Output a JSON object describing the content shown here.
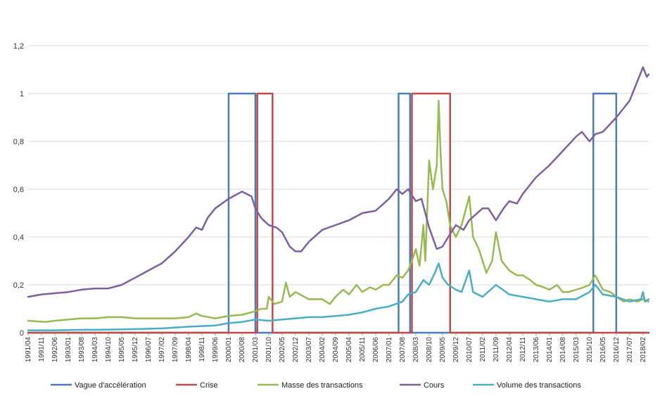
{
  "chart_data": {
    "type": "line",
    "title": "",
    "xlabel": "",
    "ylabel": "",
    "ylim": [
      0,
      1.2
    ],
    "xlim": [
      "1991/04",
      "2018/05"
    ],
    "y_ticks": [
      "0",
      "0,2",
      "0,4",
      "0,6",
      "0,8",
      "1",
      "1,2"
    ],
    "y_tick_values": [
      0,
      0.2,
      0.4,
      0.6,
      0.8,
      1.0,
      1.2
    ],
    "x_ticks": [
      "1991/04",
      "1991/11",
      "1992/06",
      "1993/01",
      "1993/08",
      "1994/03",
      "1994/10",
      "1995/05",
      "1995/12",
      "1996/07",
      "1997/02",
      "1997/09",
      "1998/04",
      "1998/11",
      "1999/06",
      "2000/01",
      "2000/08",
      "2001/03",
      "2001/10",
      "2002/05",
      "2002/12",
      "2003/07",
      "2004/02",
      "2004/09",
      "2005/04",
      "2005/11",
      "2006/06",
      "2007/01",
      "2007/08",
      "2008/03",
      "2008/10",
      "2009/05",
      "2009/12",
      "2010/07",
      "2011/02",
      "2011/09",
      "2012/04",
      "2012/11",
      "2013/06",
      "2014/01",
      "2014/08",
      "2015/03",
      "2015/10",
      "2016/05",
      "2016/12",
      "2017/07",
      "2018/02"
    ],
    "grid": true,
    "legend_position": "bottom",
    "series": [
      {
        "name": "Vague d'accélération",
        "color": "#4a7ebb",
        "kind": "step",
        "points": [
          [
            "1991/04",
            0
          ],
          [
            "2000/01",
            0
          ],
          [
            "2000/01",
            1
          ],
          [
            "2001/03",
            1
          ],
          [
            "2001/03",
            0
          ],
          [
            "2007/06",
            0
          ],
          [
            "2007/06",
            1
          ],
          [
            "2007/12",
            1
          ],
          [
            "2007/12",
            0
          ],
          [
            "2015/12",
            0
          ],
          [
            "2015/12",
            1
          ],
          [
            "2016/12",
            1
          ],
          [
            "2016/12",
            0
          ],
          [
            "2018/05",
            0
          ]
        ]
      },
      {
        "name": "Crise",
        "color": "#be4b48",
        "kind": "step",
        "points": [
          [
            "1991/04",
            0
          ],
          [
            "2001/04",
            0
          ],
          [
            "2001/04",
            1
          ],
          [
            "2001/12",
            1
          ],
          [
            "2001/12",
            0
          ],
          [
            "2008/01",
            0
          ],
          [
            "2008/01",
            1
          ],
          [
            "2009/09",
            1
          ],
          [
            "2009/09",
            0
          ],
          [
            "2018/05",
            0
          ]
        ]
      },
      {
        "name": "Masse des transactions",
        "color": "#98b954",
        "kind": "line",
        "points": [
          [
            "1991/04",
            0.05
          ],
          [
            "1992/01",
            0.045
          ],
          [
            "1992/06",
            0.05
          ],
          [
            "1993/01",
            0.055
          ],
          [
            "1993/08",
            0.06
          ],
          [
            "1994/03",
            0.06
          ],
          [
            "1994/10",
            0.065
          ],
          [
            "1995/05",
            0.065
          ],
          [
            "1995/12",
            0.06
          ],
          [
            "1996/07",
            0.06
          ],
          [
            "1997/02",
            0.06
          ],
          [
            "1997/09",
            0.06
          ],
          [
            "1998/04",
            0.065
          ],
          [
            "1998/08",
            0.08
          ],
          [
            "1998/11",
            0.07
          ],
          [
            "1999/06",
            0.06
          ],
          [
            "2000/01",
            0.07
          ],
          [
            "2000/08",
            0.075
          ],
          [
            "2001/03",
            0.09
          ],
          [
            "2001/06",
            0.1
          ],
          [
            "2001/09",
            0.1
          ],
          [
            "2001/10",
            0.15
          ],
          [
            "2002/01",
            0.12
          ],
          [
            "2002/05",
            0.13
          ],
          [
            "2002/07",
            0.21
          ],
          [
            "2002/09",
            0.15
          ],
          [
            "2002/12",
            0.17
          ],
          [
            "2003/07",
            0.14
          ],
          [
            "2004/02",
            0.14
          ],
          [
            "2004/06",
            0.12
          ],
          [
            "2004/09",
            0.15
          ],
          [
            "2005/01",
            0.18
          ],
          [
            "2005/04",
            0.16
          ],
          [
            "2005/08",
            0.2
          ],
          [
            "2005/11",
            0.17
          ],
          [
            "2006/03",
            0.19
          ],
          [
            "2006/06",
            0.18
          ],
          [
            "2006/10",
            0.2
          ],
          [
            "2007/01",
            0.2
          ],
          [
            "2007/05",
            0.24
          ],
          [
            "2007/08",
            0.23
          ],
          [
            "2007/11",
            0.26
          ],
          [
            "2008/01",
            0.3
          ],
          [
            "2008/03",
            0.35
          ],
          [
            "2008/05",
            0.28
          ],
          [
            "2008/07",
            0.45
          ],
          [
            "2008/08",
            0.3
          ],
          [
            "2008/10",
            0.72
          ],
          [
            "2008/12",
            0.6
          ],
          [
            "2009/02",
            0.7
          ],
          [
            "2009/03",
            0.97
          ],
          [
            "2009/04",
            0.75
          ],
          [
            "2009/05",
            0.6
          ],
          [
            "2009/07",
            0.55
          ],
          [
            "2009/09",
            0.45
          ],
          [
            "2009/12",
            0.4
          ],
          [
            "2010/03",
            0.45
          ],
          [
            "2010/07",
            0.57
          ],
          [
            "2010/09",
            0.4
          ],
          [
            "2010/12",
            0.35
          ],
          [
            "2011/02",
            0.3
          ],
          [
            "2011/04",
            0.25
          ],
          [
            "2011/07",
            0.3
          ],
          [
            "2011/09",
            0.42
          ],
          [
            "2011/12",
            0.3
          ],
          [
            "2012/04",
            0.26
          ],
          [
            "2012/08",
            0.24
          ],
          [
            "2012/11",
            0.24
          ],
          [
            "2013/03",
            0.22
          ],
          [
            "2013/06",
            0.2
          ],
          [
            "2013/10",
            0.19
          ],
          [
            "2014/01",
            0.18
          ],
          [
            "2014/05",
            0.2
          ],
          [
            "2014/08",
            0.17
          ],
          [
            "2014/11",
            0.17
          ],
          [
            "2015/03",
            0.18
          ],
          [
            "2015/07",
            0.19
          ],
          [
            "2015/10",
            0.2
          ],
          [
            "2016/01",
            0.24
          ],
          [
            "2016/05",
            0.18
          ],
          [
            "2016/09",
            0.17
          ],
          [
            "2016/12",
            0.15
          ],
          [
            "2017/04",
            0.13
          ],
          [
            "2017/07",
            0.14
          ],
          [
            "2017/11",
            0.13
          ],
          [
            "2018/02",
            0.14
          ],
          [
            "2018/05",
            0.13
          ]
        ]
      },
      {
        "name": "Cours",
        "color": "#7d60a0",
        "kind": "line",
        "points": [
          [
            "1991/04",
            0.15
          ],
          [
            "1991/11",
            0.16
          ],
          [
            "1992/06",
            0.165
          ],
          [
            "1993/01",
            0.17
          ],
          [
            "1993/08",
            0.18
          ],
          [
            "1994/03",
            0.185
          ],
          [
            "1994/10",
            0.185
          ],
          [
            "1995/05",
            0.2
          ],
          [
            "1995/12",
            0.23
          ],
          [
            "1996/07",
            0.26
          ],
          [
            "1997/02",
            0.29
          ],
          [
            "1997/09",
            0.34
          ],
          [
            "1998/04",
            0.4
          ],
          [
            "1998/08",
            0.44
          ],
          [
            "1998/11",
            0.43
          ],
          [
            "1999/02",
            0.48
          ],
          [
            "1999/06",
            0.52
          ],
          [
            "2000/01",
            0.56
          ],
          [
            "2000/08",
            0.59
          ],
          [
            "2001/01",
            0.57
          ],
          [
            "2001/03",
            0.52
          ],
          [
            "2001/06",
            0.48
          ],
          [
            "2001/10",
            0.45
          ],
          [
            "2002/02",
            0.44
          ],
          [
            "2002/05",
            0.42
          ],
          [
            "2002/09",
            0.36
          ],
          [
            "2002/12",
            0.34
          ],
          [
            "2003/03",
            0.34
          ],
          [
            "2003/07",
            0.38
          ],
          [
            "2004/02",
            0.43
          ],
          [
            "2004/09",
            0.45
          ],
          [
            "2005/04",
            0.47
          ],
          [
            "2005/11",
            0.5
          ],
          [
            "2006/06",
            0.51
          ],
          [
            "2007/01",
            0.56
          ],
          [
            "2007/05",
            0.6
          ],
          [
            "2007/08",
            0.58
          ],
          [
            "2007/11",
            0.6
          ],
          [
            "2008/03",
            0.55
          ],
          [
            "2008/06",
            0.56
          ],
          [
            "2008/10",
            0.44
          ],
          [
            "2009/02",
            0.35
          ],
          [
            "2009/05",
            0.36
          ],
          [
            "2009/08",
            0.4
          ],
          [
            "2009/12",
            0.45
          ],
          [
            "2010/04",
            0.43
          ],
          [
            "2010/07",
            0.47
          ],
          [
            "2011/02",
            0.52
          ],
          [
            "2011/05",
            0.52
          ],
          [
            "2011/09",
            0.47
          ],
          [
            "2012/01",
            0.52
          ],
          [
            "2012/04",
            0.55
          ],
          [
            "2012/08",
            0.54
          ],
          [
            "2012/11",
            0.58
          ],
          [
            "2013/06",
            0.65
          ],
          [
            "2014/01",
            0.7
          ],
          [
            "2014/08",
            0.76
          ],
          [
            "2015/03",
            0.82
          ],
          [
            "2015/06",
            0.84
          ],
          [
            "2015/10",
            0.8
          ],
          [
            "2016/01",
            0.83
          ],
          [
            "2016/05",
            0.84
          ],
          [
            "2016/12",
            0.9
          ],
          [
            "2017/07",
            0.97
          ],
          [
            "2018/02",
            1.11
          ],
          [
            "2018/04",
            1.07
          ],
          [
            "2018/05",
            1.08
          ]
        ]
      },
      {
        "name": "Volume des transactions",
        "color": "#4bacc6",
        "kind": "line",
        "points": [
          [
            "1991/04",
            0.01
          ],
          [
            "1992/06",
            0.01
          ],
          [
            "1993/08",
            0.012
          ],
          [
            "1994/10",
            0.013
          ],
          [
            "1995/12",
            0.015
          ],
          [
            "1997/02",
            0.018
          ],
          [
            "1998/04",
            0.025
          ],
          [
            "1999/06",
            0.03
          ],
          [
            "2000/01",
            0.04
          ],
          [
            "2000/08",
            0.045
          ],
          [
            "2001/03",
            0.055
          ],
          [
            "2001/10",
            0.05
          ],
          [
            "2002/05",
            0.055
          ],
          [
            "2002/12",
            0.06
          ],
          [
            "2003/07",
            0.065
          ],
          [
            "2004/02",
            0.065
          ],
          [
            "2004/09",
            0.07
          ],
          [
            "2005/04",
            0.075
          ],
          [
            "2005/11",
            0.085
          ],
          [
            "2006/06",
            0.1
          ],
          [
            "2007/01",
            0.11
          ],
          [
            "2007/08",
            0.13
          ],
          [
            "2007/11",
            0.16
          ],
          [
            "2008/03",
            0.17
          ],
          [
            "2008/07",
            0.22
          ],
          [
            "2008/10",
            0.2
          ],
          [
            "2009/01",
            0.25
          ],
          [
            "2009/03",
            0.29
          ],
          [
            "2009/05",
            0.23
          ],
          [
            "2009/08",
            0.2
          ],
          [
            "2009/12",
            0.18
          ],
          [
            "2010/03",
            0.17
          ],
          [
            "2010/07",
            0.26
          ],
          [
            "2010/09",
            0.17
          ],
          [
            "2011/02",
            0.15
          ],
          [
            "2011/09",
            0.2
          ],
          [
            "2012/04",
            0.16
          ],
          [
            "2012/11",
            0.15
          ],
          [
            "2013/06",
            0.14
          ],
          [
            "2014/01",
            0.13
          ],
          [
            "2014/08",
            0.14
          ],
          [
            "2015/03",
            0.14
          ],
          [
            "2015/10",
            0.17
          ],
          [
            "2016/01",
            0.2
          ],
          [
            "2016/05",
            0.16
          ],
          [
            "2016/12",
            0.15
          ],
          [
            "2017/07",
            0.13
          ],
          [
            "2018/01",
            0.14
          ],
          [
            "2018/02",
            0.17
          ],
          [
            "2018/03",
            0.13
          ],
          [
            "2018/05",
            0.14
          ]
        ]
      }
    ]
  }
}
